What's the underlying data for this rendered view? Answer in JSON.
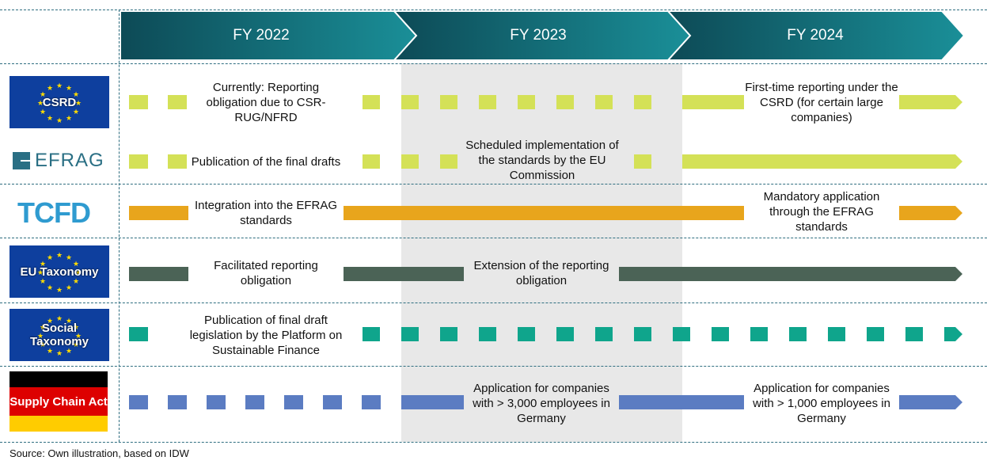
{
  "header": {
    "years": [
      "FY 2022",
      "FY 2023",
      "FY 2024"
    ]
  },
  "rows": [
    {
      "id": "csrd",
      "logo_text": "CSRD",
      "color": "#d4e157",
      "notes": [
        "Currently: Reporting obligation due to CSR-RUG/NFRD",
        "First-time reporting under the CSRD (for certain large companies)"
      ]
    },
    {
      "id": "efrag",
      "logo_text": "EFRAG",
      "color": "#d4e157",
      "notes": [
        "Publication of the final drafts",
        "Scheduled implementation of the standards by the EU Commission"
      ]
    },
    {
      "id": "tcfd",
      "logo_text": "TCFD",
      "color": "#e8a51c",
      "notes": [
        "Integration into the EFRAG standards",
        "Mandatory application through the EFRAG standards"
      ]
    },
    {
      "id": "eu-taxonomy",
      "logo_text": "EU Taxonomy",
      "color": "#4b6356",
      "notes": [
        "Facilitated reporting obligation",
        "Extension of the reporting obligation"
      ]
    },
    {
      "id": "social-taxonomy",
      "logo_text": "Social Taxonomy",
      "color": "#0fa58c",
      "notes": [
        "Publication of final draft legislation by the Platform on Sustainable Finance"
      ]
    },
    {
      "id": "supply-chain-act",
      "logo_text": "Supply Chain Act",
      "color": "#5b7cc2",
      "notes": [
        "Application for companies with > 3,000 employees in Germany",
        "Application for companies with > 1,000 employees in Germany"
      ]
    }
  ],
  "footer": {
    "source": "Source: Own illustration, based on IDW"
  },
  "colors": {
    "chevron_dark": "#0d4a56",
    "chevron_light": "#1a8f98",
    "eu_blue": "#0e3f9e",
    "grid": "#2f6e80",
    "band": "#e8e8e8"
  }
}
